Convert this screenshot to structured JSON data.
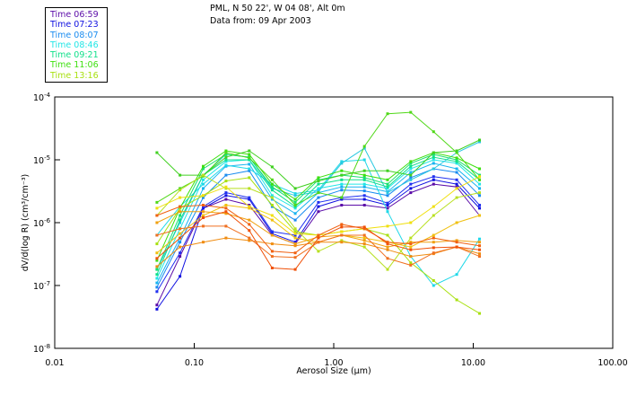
{
  "header": {
    "line1": "PML, N 50 22', W 04 08', Alt 0m",
    "line2": "Data from: 09 Apr 2003"
  },
  "legend": [
    {
      "label": "Time 06:59",
      "color": "#5b0ca8"
    },
    {
      "label": "Time 07:23",
      "color": "#1010e0"
    },
    {
      "label": "Time 08:07",
      "color": "#1a8cf0"
    },
    {
      "label": "Time 08:46",
      "color": "#22e6e6"
    },
    {
      "label": "Time 09:21",
      "color": "#10e08a"
    },
    {
      "label": "Time 11:06",
      "color": "#3ee010"
    },
    {
      "label": "Time 13:16",
      "color": "#a8e010"
    }
  ],
  "chart_data": {
    "type": "line",
    "title": "PML, N 50 22', W 04 08', Alt 0m — Data from: 09 Apr 2003",
    "xlabel": "Aerosol Size (µm)",
    "ylabel": "dV/d(log R) (cm³/cm⁻³)",
    "xscale": "log",
    "yscale": "log",
    "xlim": [
      0.01,
      100
    ],
    "ylim": [
      1e-08,
      0.0001
    ],
    "x_ticks": [
      {
        "value": 0.01,
        "label": "0.01"
      },
      {
        "value": 0.1,
        "label": "0.10"
      },
      {
        "value": 1,
        "label": "1.00"
      },
      {
        "value": 10,
        "label": "10.00"
      },
      {
        "value": 100,
        "label": "100.00"
      }
    ],
    "y_ticks": [
      {
        "value": 0.0001,
        "base": "10",
        "exp": "-4"
      },
      {
        "value": 1e-05,
        "base": "10",
        "exp": "-5"
      },
      {
        "value": 1e-06,
        "base": "10",
        "exp": "-6"
      },
      {
        "value": 1e-07,
        "base": "10",
        "exp": "-7"
      },
      {
        "value": 1e-08,
        "base": "10",
        "exp": "-8"
      }
    ],
    "grid": false,
    "legend_position": "top-left (outside plot)",
    "x": [
      0.054,
      0.079,
      0.116,
      0.169,
      0.248,
      0.362,
      0.53,
      0.776,
      1.14,
      1.66,
      2.43,
      3.56,
      5.2,
      7.62,
      11.1
    ],
    "series": [
      {
        "name": "Time 06:59",
        "color": "#5b0ca8",
        "values": [
          4.9e-08,
          2.9e-07,
          1.7e-06,
          2.35e-06,
          1.9e-06,
          6.3e-07,
          4.6e-07,
          1.5e-06,
          1.9e-06,
          1.9e-06,
          1.7e-06,
          3e-06,
          4.1e-06,
          3.7e-06,
          1.3e-06
        ]
      },
      {
        "name": "Time 07:23",
        "color": "#1010e0",
        "values": [
          4.2e-08,
          1.4e-07,
          1.7e-06,
          2.7e-06,
          2.35e-06,
          6.7e-07,
          4.9e-07,
          1.8e-06,
          2.35e-06,
          2.35e-06,
          1.9e-06,
          3.5e-06,
          4.8e-06,
          4.1e-06,
          1.7e-06
        ]
      },
      {
        "name": "",
        "color": "#2030f0",
        "values": [
          8e-08,
          3.3e-07,
          1.8e-06,
          3e-06,
          2.5e-06,
          7.2e-07,
          6.3e-07,
          2.1e-06,
          2.5e-06,
          2.7e-06,
          2.05e-06,
          4.1e-06,
          5.4e-06,
          4.8e-06,
          1.9e-06
        ]
      },
      {
        "name": "Time 08:07",
        "color": "#1a8cf0",
        "values": [
          9.4e-08,
          4.9e-07,
          2.5e-06,
          5.7e-06,
          6.7e-06,
          1.8e-06,
          1.1e-06,
          2.5e-06,
          3.3e-06,
          3.2e-06,
          2.7e-06,
          5.2e-06,
          7.2e-06,
          6.3e-06,
          2.7e-06
        ]
      },
      {
        "name": "",
        "color": "#18b4f0",
        "values": [
          1.1e-07,
          5.7e-07,
          3.5e-06,
          7.9e-06,
          8.5e-06,
          2.35e-06,
          1.4e-06,
          3e-06,
          3.7e-06,
          3.7e-06,
          3.1e-06,
          6.3e-06,
          8.8e-06,
          7.2e-06,
          3.5e-06
        ]
      },
      {
        "name": "Time 08:46",
        "color": "#22e6e6",
        "values": [
          1.3e-07,
          8e-07,
          4.8e-06,
          9.4e-06,
          1e-05,
          2.7e-06,
          1.7e-06,
          3.5e-06,
          4.1e-06,
          4.1e-06,
          3.5e-06,
          7.2e-06,
          1e-05,
          8.8e-06,
          4.1e-06
        ]
      },
      {
        "name": "",
        "color": "#20d8e8",
        "values": [
          6.3e-07,
          1.8e-06,
          4.1e-06,
          8.2e-06,
          7.2e-06,
          4.1e-06,
          2.9e-06,
          3.3e-06,
          9.4e-06,
          1e-05,
          1.5e-06,
          2.9e-07,
          1e-07,
          1.5e-07,
          5.5e-07
        ]
      },
      {
        "name": "",
        "color": "#28c8e0",
        "values": [
          1.8e-07,
          1e-06,
          5.7e-06,
          1.22e-05,
          1.1e-05,
          3.5e-06,
          2.7e-06,
          3.1e-06,
          8.8e-06,
          1.53e-05,
          3e-06,
          4.8e-06,
          7.2e-06,
          1.3e-05,
          1.93e-05
        ]
      },
      {
        "name": "Time 09:21",
        "color": "#10e08a",
        "values": [
          1.5e-07,
          1.1e-06,
          5.7e-06,
          1e-05,
          1e-05,
          3.3e-06,
          1.8e-06,
          4.1e-06,
          4.8e-06,
          4.8e-06,
          3.7e-06,
          7.9e-06,
          1.1e-05,
          9.4e-06,
          4.8e-06
        ]
      },
      {
        "name": "",
        "color": "#18e070",
        "values": [
          1.8e-07,
          1.3e-06,
          7.2e-06,
          1.22e-05,
          1.1e-05,
          3.7e-06,
          2.1e-06,
          4.8e-06,
          5.7e-06,
          5.2e-06,
          4.1e-06,
          8.8e-06,
          1.22e-05,
          1e-05,
          5.7e-06
        ]
      },
      {
        "name": "Time 11:06",
        "color": "#3ee010",
        "values": [
          2.5e-07,
          1.7e-06,
          7.9e-06,
          1.39e-05,
          1.22e-05,
          4.1e-06,
          2.35e-06,
          5.2e-06,
          6.7e-06,
          5.7e-06,
          4.8e-06,
          9.4e-06,
          1.3e-05,
          1.07e-05,
          7.2e-06
        ]
      },
      {
        "name": "",
        "color": "#50d818",
        "values": [
          2.1e-06,
          3.5e-06,
          5.5e-06,
          1.3e-05,
          1.07e-05,
          4.8e-06,
          1.9e-06,
          3e-06,
          2.5e-06,
          1.64e-05,
          5.4e-05,
          5.7e-05,
          2.8e-05,
          1.3e-05,
          4.8e-06
        ]
      },
      {
        "name": "",
        "color": "#40d020",
        "values": [
          1.3e-05,
          5.7e-06,
          5.7e-06,
          1.1e-05,
          1.39e-05,
          7.7e-06,
          3.5e-06,
          4.6e-06,
          5.7e-06,
          6.7e-06,
          6.7e-06,
          5.7e-06,
          1.3e-05,
          1.39e-05,
          2.06e-05
        ]
      },
      {
        "name": "Time 13:16",
        "color": "#a8e010",
        "values": [
          4.6e-07,
          1.7e-06,
          2.7e-06,
          4.6e-06,
          5.2e-06,
          1.9e-06,
          7.2e-07,
          6.3e-07,
          7.2e-07,
          8e-07,
          6.3e-07,
          2.3e-07,
          1.2e-07,
          5.9e-08,
          3.6e-08
        ]
      },
      {
        "name": "",
        "color": "#b8e020",
        "values": [
          1.3e-06,
          3.3e-06,
          5.7e-06,
          3.5e-06,
          3.5e-06,
          2.5e-06,
          8e-07,
          3.5e-07,
          5.2e-07,
          4.1e-07,
          1.8e-07,
          5.7e-07,
          1.3e-06,
          2.5e-06,
          3e-06
        ]
      },
      {
        "name": "",
        "color": "#f0e010",
        "values": [
          1.7e-06,
          2.5e-06,
          2.7e-06,
          3.7e-06,
          1.8e-06,
          1.3e-06,
          6.7e-07,
          6.3e-07,
          7.2e-07,
          8e-07,
          8.8e-07,
          1e-06,
          1.8e-06,
          3.5e-06,
          5.4e-06
        ]
      },
      {
        "name": "",
        "color": "#f0c010",
        "values": [
          3.3e-07,
          6.7e-07,
          1.3e-06,
          1.9e-06,
          1.7e-06,
          1.1e-06,
          5.7e-07,
          4.9e-07,
          6.3e-07,
          5.7e-07,
          4.9e-07,
          4.1e-07,
          6.3e-07,
          1e-06,
          1.3e-06
        ]
      },
      {
        "name": "",
        "color": "#f0a010",
        "values": [
          1e-06,
          1.5e-06,
          1.5e-06,
          1.4e-06,
          1.1e-06,
          6.3e-07,
          4.6e-07,
          5.9e-07,
          6.3e-07,
          5.2e-07,
          4.1e-07,
          4.9e-07,
          4.9e-07,
          5.2e-07,
          4.9e-07
        ]
      },
      {
        "name": "",
        "color": "#f08c10",
        "values": [
          2e-07,
          4.1e-07,
          4.9e-07,
          5.7e-07,
          5.2e-07,
          4.6e-07,
          4.3e-07,
          4.9e-07,
          4.9e-07,
          4.6e-07,
          3.7e-07,
          2.9e-07,
          3.2e-07,
          4.1e-07,
          3.2e-07
        ]
      },
      {
        "name": "",
        "color": "#f06010",
        "values": [
          1.3e-06,
          1.8e-06,
          1.9e-06,
          1.7e-06,
          9.4e-07,
          3.5e-07,
          3.3e-07,
          6.3e-07,
          9.4e-07,
          8e-07,
          4.9e-07,
          4.6e-07,
          5.7e-07,
          4.9e-07,
          4.3e-07
        ]
      },
      {
        "name": "",
        "color": "#f07020",
        "values": [
          6.3e-07,
          8e-07,
          8.8e-07,
          8.8e-07,
          5.7e-07,
          2.9e-07,
          2.8e-07,
          4.9e-07,
          6.3e-07,
          6.3e-07,
          2.7e-07,
          2.1e-07,
          3.3e-07,
          4.1e-07,
          2.9e-07
        ]
      },
      {
        "name": "",
        "color": "#f05008",
        "values": [
          2.7e-07,
          5.7e-07,
          1.2e-06,
          1.5e-06,
          7.5e-07,
          1.9e-07,
          1.8e-07,
          5.7e-07,
          8.5e-07,
          8.5e-07,
          4.6e-07,
          3.7e-07,
          4e-07,
          4.1e-07,
          3.7e-07
        ]
      }
    ]
  }
}
